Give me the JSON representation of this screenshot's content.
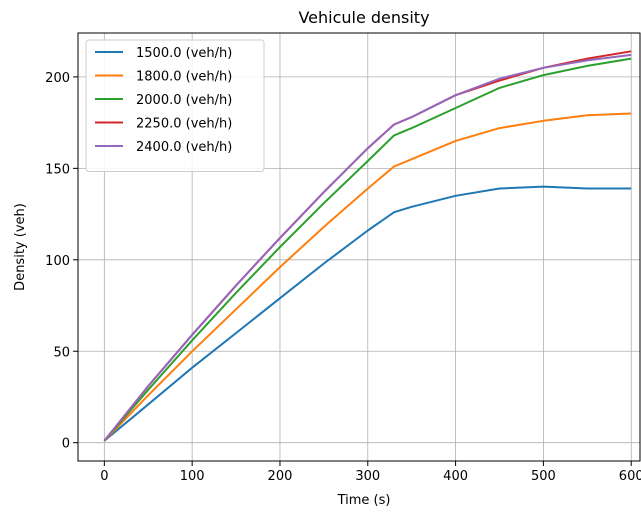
{
  "chart_data": {
    "type": "line",
    "title": "Vehicule density",
    "xlabel": "Time (s)",
    "ylabel": "Density (veh)",
    "xlim": [
      -30,
      610
    ],
    "ylim": [
      -10,
      224
    ],
    "xticks": [
      0,
      100,
      200,
      300,
      400,
      500,
      600
    ],
    "yticks": [
      0,
      50,
      100,
      150,
      200
    ],
    "grid": true,
    "legend": "top-left",
    "series": [
      {
        "name": "1500.0 (veh/h)",
        "color": "#1f77b4",
        "x": [
          0,
          50,
          100,
          150,
          200,
          250,
          300,
          330,
          350,
          400,
          450,
          500,
          550,
          600
        ],
        "y": [
          1,
          21,
          41,
          60,
          79,
          98,
          116,
          126,
          129,
          135,
          139,
          140,
          139,
          139
        ]
      },
      {
        "name": "1800.0 (veh/h)",
        "color": "#ff7f0e",
        "x": [
          0,
          50,
          100,
          150,
          200,
          250,
          300,
          330,
          350,
          400,
          450,
          500,
          550,
          600
        ],
        "y": [
          1,
          26,
          50,
          73,
          96,
          118,
          139,
          151,
          155,
          165,
          172,
          176,
          179,
          180
        ]
      },
      {
        "name": "2000.0 (veh/h)",
        "color": "#2ca02c",
        "x": [
          0,
          50,
          100,
          150,
          200,
          250,
          300,
          330,
          350,
          400,
          450,
          500,
          550,
          600
        ],
        "y": [
          1,
          29,
          56,
          82,
          107,
          131,
          154,
          168,
          172,
          183,
          194,
          201,
          206,
          210
        ]
      },
      {
        "name": "2250.0 (veh/h)",
        "color": "#d62728",
        "x": [
          0,
          50,
          100,
          150,
          200,
          250,
          300,
          330,
          350,
          400,
          450,
          500,
          550,
          600
        ],
        "y": [
          1,
          31,
          59,
          86,
          112,
          137,
          161,
          174,
          178,
          190,
          198,
          205,
          210,
          214
        ]
      },
      {
        "name": "2400.0 (veh/h)",
        "color": "#9467bd",
        "x": [
          0,
          50,
          100,
          150,
          200,
          250,
          300,
          330,
          350,
          400,
          450,
          500,
          550,
          600
        ],
        "y": [
          1,
          31,
          59,
          86,
          112,
          137,
          161,
          174,
          178,
          190,
          199,
          205,
          209,
          212
        ]
      }
    ]
  }
}
